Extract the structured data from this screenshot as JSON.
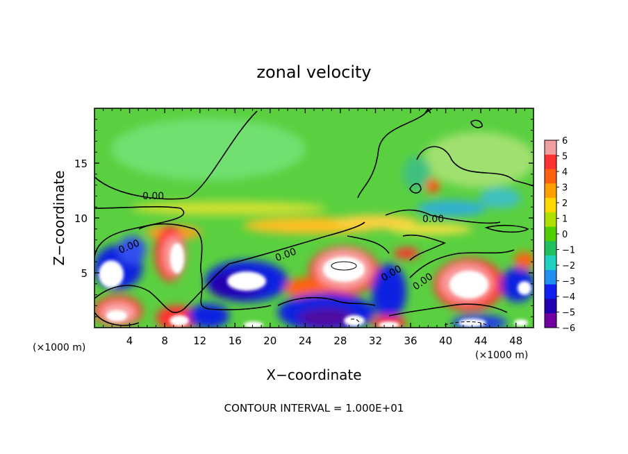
{
  "chart_data": {
    "type": "heatmap",
    "title": "zonal velocity",
    "xlabel": "X−coordinate",
    "ylabel": "Z−coordinate",
    "x_unit": "(×1000 m)",
    "y_unit": "(×1000 m)",
    "xlim": [
      0,
      50
    ],
    "ylim": [
      0,
      20
    ],
    "x_ticks": [
      4,
      8,
      12,
      16,
      20,
      24,
      28,
      32,
      36,
      40,
      44,
      48
    ],
    "y_ticks": [
      5,
      10,
      15
    ],
    "colorbar": {
      "ticks": [
        "6",
        "5",
        "4",
        "3",
        "2",
        "1",
        "0",
        "−1",
        "−2",
        "−3",
        "−4",
        "−5",
        "−6"
      ],
      "colors": [
        "#f0a0a0",
        "#ff3030",
        "#ff6010",
        "#ffa000",
        "#ffd800",
        "#b0e000",
        "#50d000",
        "#20c060",
        "#20d0c0",
        "#2090f0",
        "#1020f0",
        "#2000b0",
        "#7000a0"
      ]
    },
    "contour_labels": [
      "0.00",
      "0.00",
      "0.00",
      "0.00",
      "0.00",
      "0.00"
    ],
    "footer": "CONTOUR INTERVAL = 1.000E+01",
    "grid": false
  }
}
